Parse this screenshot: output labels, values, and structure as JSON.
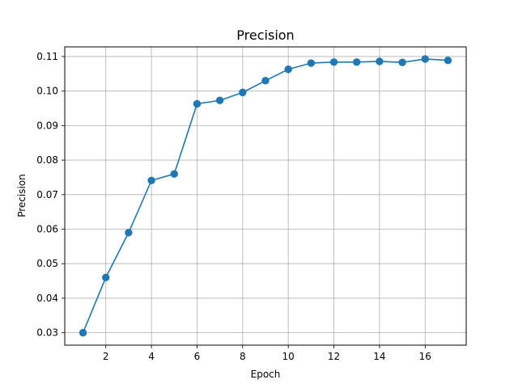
{
  "chart_data": {
    "type": "line",
    "title": "Precision",
    "xlabel": "Epoch",
    "ylabel": "Precision",
    "xlim": [
      0.2,
      17.8
    ],
    "ylim": [
      0.0264,
      0.1128
    ],
    "x_ticks": [
      2,
      4,
      6,
      8,
      10,
      12,
      14,
      16
    ],
    "x_tick_labels": [
      "2",
      "4",
      "6",
      "8",
      "10",
      "12",
      "14",
      "16"
    ],
    "y_ticks": [
      0.03,
      0.04,
      0.05,
      0.06,
      0.07,
      0.08,
      0.09,
      0.1,
      0.11
    ],
    "y_tick_labels": [
      "0.03",
      "0.04",
      "0.05",
      "0.06",
      "0.07",
      "0.08",
      "0.09",
      "0.10",
      "0.11"
    ],
    "grid": true,
    "series": [
      {
        "color": "#1f77b4",
        "marker": "circle",
        "x": [
          1,
          2,
          3,
          4,
          5,
          6,
          7,
          8,
          9,
          10,
          11,
          12,
          13,
          14,
          15,
          16,
          17
        ],
        "y": [
          0.03,
          0.046,
          0.059,
          0.0741,
          0.076,
          0.0963,
          0.0973,
          0.0996,
          0.103,
          0.1063,
          0.1081,
          0.1084,
          0.1084,
          0.1086,
          0.1083,
          0.1093,
          0.1089
        ]
      }
    ]
  }
}
